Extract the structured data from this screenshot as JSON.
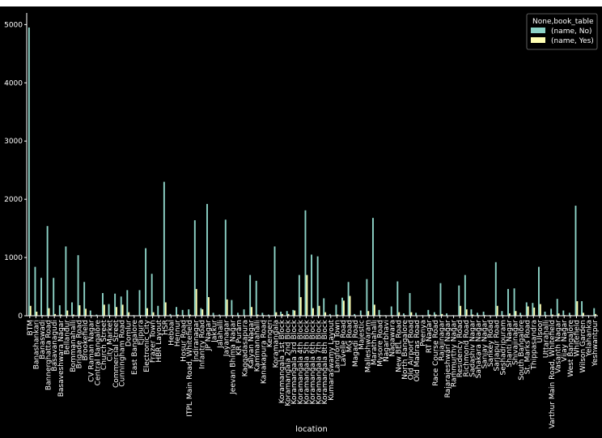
{
  "chart_data": {
    "type": "bar",
    "xlabel": "location",
    "ylabel": "",
    "ylim": [
      0,
      5200
    ],
    "yticks": [
      0,
      1000,
      2000,
      3000,
      4000,
      5000
    ],
    "legend": {
      "title": "None,book_table",
      "position": "top-right"
    },
    "colors": {
      "background": "#000000",
      "figure": "#ffffff",
      "series_no": "#8dd3c7",
      "series_yes": "#ffffb3",
      "axis": "#ffffff"
    },
    "categories": [
      "BTM",
      "Banashankari",
      "Banaswadi",
      "Bannerghatta Road",
      "Basavanagudi",
      "Basaveshwara Nagar",
      "Bellandur",
      "Bommanahalli",
      "Brigade Road",
      "Brookefield",
      "CV Raman Nagar",
      "Central Bangalore",
      "Church Street",
      "City Market",
      "Commercial Street",
      "Cunningham Road",
      "Domlur",
      "East Bangalore",
      "Ejipura",
      "Electronic City",
      "Frazer Town",
      "HBR Layout",
      "HSR",
      "Hebbal",
      "Hennur",
      "Hosur Road",
      "ITPL Main Road, Whitefield",
      "Indiranagar",
      "Infantry Road",
      "JP Nagar",
      "Jakkur",
      "Jalahalli",
      "Jayanagar",
      "Jeevan Bhima Nagar",
      "KR Puram",
      "Kaggadasapura",
      "Kalyan Nagar",
      "Kammanahalli",
      "Kanakapura Road",
      "Kengeri",
      "Koramangala",
      "Koramangala 1st Block",
      "Koramangala 2nd Block",
      "Koramangala 3rd Block",
      "Koramangala 4th Block",
      "Koramangala 5th Block",
      "Koramangala 6th Block",
      "Koramangala 7th Block",
      "Koramangala 8th Block",
      "Kumaraswamy Layout",
      "Langford Town",
      "Lavelle Road",
      "MG Road",
      "Magadi Road",
      "Majestic",
      "Malleshwaram",
      "Marathahalli",
      "Mysore Road",
      "Nagarbhavi",
      "Nagawara",
      "New BEL Road",
      "North Bangalore",
      "Old Airport Road",
      "Old Madras Road",
      "Peenya",
      "RT Nagar",
      "Race Course Road",
      "Rajajinagar",
      "Rajarajeshwari Nagar",
      "Rammurthy Nagar",
      "Residency Road",
      "Richmond Road",
      "Sadashiv Nagar",
      "Sahakara Nagar",
      "Sanjay Nagar",
      "Sankey Road",
      "Sarjapur Road",
      "Seshadripuram",
      "Shanti Nagar",
      "Shivajinagar",
      "South Bangalore",
      "St. Marks Road",
      "Thippasandra",
      "Ulsoor",
      "Uttarahalli",
      "Varthur Main Road, Whitefield",
      "Vasanth Nagar",
      "Vijay Nagar",
      "West Bangalore",
      "Whitefield",
      "Wilson Garden",
      "Yelahanka",
      "Yeshwantpur"
    ],
    "series": [
      {
        "name": "(name, No)",
        "values": [
          4950,
          840,
          650,
          1540,
          650,
          180,
          1190,
          230,
          1040,
          580,
          90,
          20,
          390,
          200,
          380,
          330,
          440,
          10,
          440,
          1160,
          720,
          170,
          2300,
          30,
          150,
          100,
          110,
          1640,
          130,
          1920,
          50,
          20,
          1650,
          270,
          50,
          110,
          700,
          600,
          50,
          20,
          1190,
          70,
          80,
          100,
          700,
          1810,
          1050,
          1020,
          300,
          30,
          190,
          310,
          580,
          30,
          90,
          630,
          1680,
          100,
          10,
          160,
          590,
          40,
          390,
          50,
          10,
          100,
          60,
          560,
          40,
          10,
          520,
          700,
          110,
          50,
          70,
          10,
          920,
          80,
          460,
          470,
          50,
          230,
          220,
          840,
          70,
          120,
          290,
          90,
          50,
          1890,
          250,
          10,
          130
        ]
      },
      {
        "name": "(name, Yes)",
        "values": [
          170,
          70,
          10,
          130,
          30,
          20,
          90,
          20,
          180,
          120,
          10,
          5,
          190,
          10,
          150,
          190,
          60,
          5,
          10,
          130,
          60,
          10,
          230,
          5,
          20,
          10,
          20,
          460,
          110,
          320,
          5,
          5,
          280,
          10,
          10,
          5,
          150,
          20,
          10,
          5,
          60,
          30,
          30,
          90,
          320,
          700,
          130,
          170,
          60,
          5,
          20,
          260,
          340,
          5,
          10,
          80,
          190,
          10,
          5,
          10,
          60,
          10,
          60,
          5,
          5,
          20,
          20,
          30,
          5,
          5,
          170,
          110,
          20,
          10,
          10,
          5,
          170,
          10,
          40,
          80,
          10,
          160,
          140,
          200,
          10,
          20,
          40,
          10,
          10,
          250,
          50,
          5,
          30
        ]
      }
    ]
  }
}
